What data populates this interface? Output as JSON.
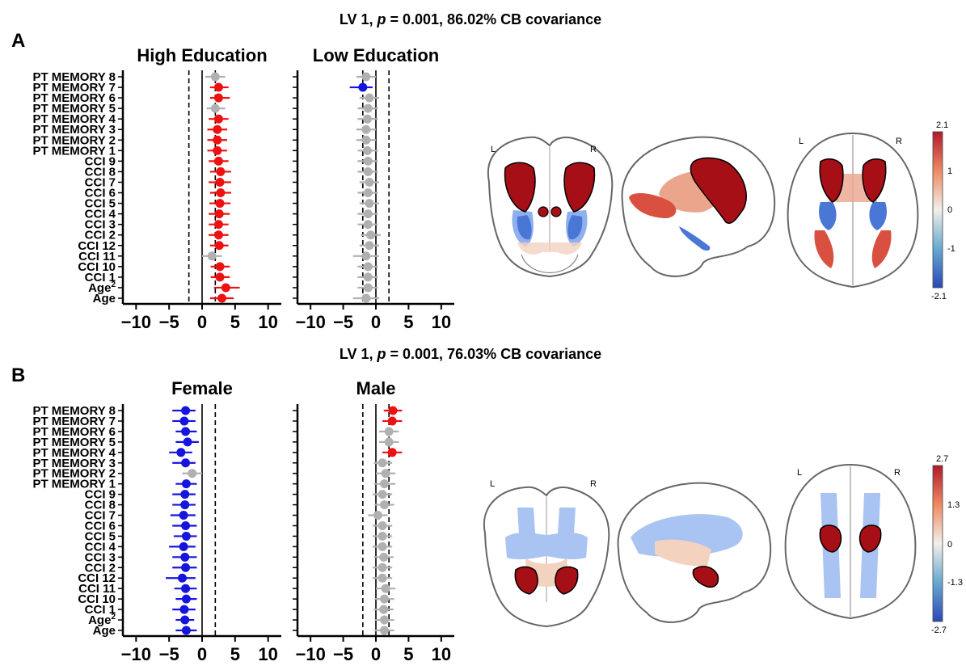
{
  "figure": {
    "panels": [
      {
        "letter": "A",
        "title_prefix": "LV 1, ",
        "title_p": "p",
        "title_rest": " = 0.001, 86.02% CB covariance",
        "lr_labels": [
          "L",
          "R",
          "L",
          "R"
        ],
        "brain_palette": {
          "dark_red": "#a50f15",
          "red": "#d95040",
          "salmon": "#eba58c",
          "light": "#f3d2c0",
          "blue": "#4a76d6",
          "light_blue": "#8fb0ec"
        },
        "colorbar": {
          "ticks": [
            "2.1",
            "1",
            "0",
            "-1",
            "-2.1"
          ],
          "min": -2.1,
          "max": 2.1
        }
      },
      {
        "letter": "B",
        "title_prefix": "LV 1, ",
        "title_p": "p",
        "title_rest": " = 0.001, 76.03% CB covariance",
        "lr_labels": [
          "L",
          "R",
          "L",
          "R"
        ],
        "brain_palette": {
          "dark_red": "#a50f15",
          "red": "#d95040",
          "salmon": "#eba58c",
          "light": "#f3d2c0",
          "blue": "#4a76d6",
          "light_blue": "#a9c3f2"
        },
        "colorbar": {
          "ticks": [
            "2.7",
            "1.3",
            "0",
            "-1.3",
            "-2.7"
          ],
          "min": -2.7,
          "max": 2.7
        }
      }
    ]
  },
  "chart_data": [
    {
      "type": "scatter",
      "title": "High Education",
      "categories": [
        "PT MEMORY 8",
        "PT MEMORY 7",
        "PT MEMORY 6",
        "PT MEMORY 5",
        "PT MEMORY 4",
        "PT MEMORY 3",
        "PT MEMORY 2",
        "PT MEMORY 1",
        "CCI 9",
        "CCI 8",
        "CCI 7",
        "CCI 6",
        "CCI 5",
        "CCI 4",
        "CCI 3",
        "CCI 2",
        "CCI 12",
        "CCI 11",
        "CCI 10",
        "CCI 1",
        "Age²",
        "Age"
      ],
      "xlim": [
        -12,
        12
      ],
      "xticks": [
        -10,
        -5,
        0,
        5,
        10
      ],
      "xtick_labels": [
        "−10",
        "−5",
        "0",
        "5",
        "10"
      ],
      "threshold_lines": [
        -2,
        2
      ],
      "values": [
        2.0,
        2.5,
        2.5,
        2.0,
        2.5,
        2.3,
        2.3,
        2.3,
        2.5,
        2.8,
        2.7,
        2.8,
        2.7,
        2.6,
        2.5,
        2.5,
        2.6,
        1.5,
        2.7,
        2.7,
        3.6,
        3.0
      ],
      "ci_low": [
        0.5,
        1.2,
        1.2,
        0.7,
        1.0,
        0.8,
        0.8,
        0.8,
        1.0,
        1.2,
        1.0,
        1.2,
        1.1,
        1.0,
        1.0,
        1.0,
        1.2,
        0.0,
        1.3,
        1.3,
        1.8,
        1.2
      ],
      "ci_high": [
        3.5,
        4.0,
        4.2,
        3.5,
        4.0,
        3.8,
        3.8,
        3.8,
        4.0,
        4.4,
        4.4,
        4.4,
        4.3,
        4.2,
        4.0,
        4.0,
        4.0,
        3.0,
        4.2,
        4.2,
        5.7,
        4.8
      ],
      "point_colors": [
        "#b0b0b0",
        "#ee1111",
        "#ee1111",
        "#b0b0b0",
        "#ee1111",
        "#ee1111",
        "#ee1111",
        "#ee1111",
        "#ee1111",
        "#ee1111",
        "#ee1111",
        "#ee1111",
        "#ee1111",
        "#ee1111",
        "#ee1111",
        "#ee1111",
        "#ee1111",
        "#b0b0b0",
        "#ee1111",
        "#ee1111",
        "#ee1111",
        "#ee1111"
      ]
    },
    {
      "type": "scatter",
      "title": "Low Education",
      "categories": [
        "PT MEMORY 8",
        "PT MEMORY 7",
        "PT MEMORY 6",
        "PT MEMORY 5",
        "PT MEMORY 4",
        "PT MEMORY 3",
        "PT MEMORY 2",
        "PT MEMORY 1",
        "CCI 9",
        "CCI 8",
        "CCI 7",
        "CCI 6",
        "CCI 5",
        "CCI 4",
        "CCI 3",
        "CCI 2",
        "CCI 12",
        "CCI 11",
        "CCI 10",
        "CCI 1",
        "Age²",
        "Age"
      ],
      "xlim": [
        -12,
        12
      ],
      "xticks": [
        -10,
        -5,
        0,
        5,
        10
      ],
      "xtick_labels": [
        "−10",
        "−5",
        "0",
        "5",
        "10"
      ],
      "threshold_lines": [
        -2,
        2
      ],
      "values": [
        -1.5,
        -2.0,
        -1.0,
        -1.2,
        -1.3,
        -1.5,
        -1.5,
        -1.3,
        -1.2,
        -1.2,
        -1.0,
        -1.2,
        -1.0,
        -1.2,
        -1.2,
        -0.8,
        -1.0,
        -1.5,
        -1.2,
        -1.2,
        -1.2,
        -1.5
      ],
      "ci_low": [
        -3.0,
        -4.0,
        -2.5,
        -2.8,
        -2.8,
        -3.0,
        -3.0,
        -2.8,
        -2.8,
        -2.8,
        -2.5,
        -2.8,
        -2.5,
        -2.8,
        -2.8,
        -2.3,
        -2.5,
        -3.5,
        -2.8,
        -2.8,
        -2.8,
        -3.5
      ],
      "ci_high": [
        0.0,
        -0.5,
        0.5,
        0.3,
        0.3,
        0.0,
        0.0,
        0.3,
        0.3,
        0.3,
        0.5,
        0.3,
        0.5,
        0.3,
        0.3,
        0.7,
        0.5,
        0.5,
        0.3,
        0.3,
        0.3,
        0.5
      ],
      "point_colors": [
        "#b0b0b0",
        "#1515dd",
        "#b0b0b0",
        "#b0b0b0",
        "#b0b0b0",
        "#b0b0b0",
        "#b0b0b0",
        "#b0b0b0",
        "#b0b0b0",
        "#b0b0b0",
        "#b0b0b0",
        "#b0b0b0",
        "#b0b0b0",
        "#b0b0b0",
        "#b0b0b0",
        "#b0b0b0",
        "#b0b0b0",
        "#b0b0b0",
        "#b0b0b0",
        "#b0b0b0",
        "#b0b0b0",
        "#b0b0b0"
      ]
    },
    {
      "type": "scatter",
      "title": "Female",
      "categories": [
        "PT MEMORY 8",
        "PT MEMORY 7",
        "PT MEMORY 6",
        "PT MEMORY 5",
        "PT MEMORY 4",
        "PT MEMORY 3",
        "PT MEMORY 2",
        "PT MEMORY 1",
        "CCI 9",
        "CCI 8",
        "CCI 7",
        "CCI 6",
        "CCI 5",
        "CCI 4",
        "CCI 3",
        "CCI 2",
        "CCI 12",
        "CCI 11",
        "CCI 10",
        "CCI 1",
        "Age²",
        "Age"
      ],
      "xlim": [
        -12,
        12
      ],
      "xticks": [
        -10,
        -5,
        0,
        5,
        10
      ],
      "xtick_labels": [
        "−10",
        "−5",
        "0",
        "5",
        "10"
      ],
      "threshold_lines": [
        2
      ],
      "values": [
        -2.5,
        -2.7,
        -2.5,
        -2.2,
        -3.2,
        -2.5,
        -1.5,
        -2.4,
        -2.6,
        -2.6,
        -2.8,
        -2.5,
        -2.4,
        -2.8,
        -2.6,
        -2.5,
        -3.0,
        -2.5,
        -2.4,
        -2.7,
        -2.6,
        -2.4
      ],
      "ci_low": [
        -4.5,
        -4.5,
        -4.0,
        -4.0,
        -5.0,
        -4.5,
        -3.0,
        -4.0,
        -4.5,
        -4.5,
        -4.8,
        -4.5,
        -4.3,
        -5.0,
        -4.5,
        -4.5,
        -5.5,
        -4.2,
        -4.0,
        -4.5,
        -4.0,
        -4.0
      ],
      "ci_high": [
        -1.0,
        -1.0,
        -0.8,
        -0.5,
        -1.5,
        -1.0,
        0.0,
        -0.8,
        -1.0,
        -1.0,
        -1.0,
        -0.8,
        -0.8,
        -1.0,
        -0.8,
        -0.8,
        -1.0,
        -0.8,
        -0.8,
        -1.0,
        -1.2,
        -0.8
      ],
      "point_colors": [
        "#1515dd",
        "#1515dd",
        "#1515dd",
        "#1515dd",
        "#1515dd",
        "#1515dd",
        "#b0b0b0",
        "#1515dd",
        "#1515dd",
        "#1515dd",
        "#1515dd",
        "#1515dd",
        "#1515dd",
        "#1515dd",
        "#1515dd",
        "#1515dd",
        "#1515dd",
        "#1515dd",
        "#1515dd",
        "#1515dd",
        "#1515dd",
        "#1515dd"
      ]
    },
    {
      "type": "scatter",
      "title": "Male",
      "categories": [
        "PT MEMORY 8",
        "PT MEMORY 7",
        "PT MEMORY 6",
        "PT MEMORY 5",
        "PT MEMORY 4",
        "PT MEMORY 3",
        "PT MEMORY 2",
        "PT MEMORY 1",
        "CCI 9",
        "CCI 8",
        "CCI 7",
        "CCI 6",
        "CCI 5",
        "CCI 4",
        "CCI 3",
        "CCI 2",
        "CCI 12",
        "CCI 11",
        "CCI 10",
        "CCI 1",
        "Age²",
        "Age"
      ],
      "xlim": [
        -12,
        12
      ],
      "xticks": [
        -10,
        -5,
        0,
        5,
        10
      ],
      "xtick_labels": [
        "−10",
        "−5",
        "0",
        "5",
        "10"
      ],
      "threshold_lines": [
        -2,
        2
      ],
      "values": [
        2.6,
        2.5,
        2.0,
        2.0,
        2.5,
        1.0,
        1.5,
        1.3,
        1.0,
        1.3,
        0.3,
        1.0,
        1.0,
        1.0,
        1.2,
        1.0,
        1.0,
        1.5,
        1.3,
        1.2,
        1.3,
        1.3
      ],
      "ci_low": [
        1.2,
        1.0,
        0.5,
        0.5,
        1.0,
        -0.3,
        0.0,
        -0.3,
        -0.5,
        -0.2,
        -1.2,
        -0.5,
        -0.5,
        -0.5,
        -0.3,
        -0.5,
        -0.5,
        0.0,
        -0.2,
        -0.3,
        -0.2,
        -0.2
      ],
      "ci_high": [
        4.0,
        4.0,
        3.5,
        3.5,
        4.0,
        2.5,
        3.0,
        3.0,
        2.5,
        2.8,
        1.8,
        2.5,
        2.5,
        2.5,
        2.7,
        2.5,
        2.5,
        3.0,
        2.8,
        2.7,
        2.8,
        2.8
      ],
      "point_colors": [
        "#ee1111",
        "#ee1111",
        "#b0b0b0",
        "#b0b0b0",
        "#ee1111",
        "#b0b0b0",
        "#b0b0b0",
        "#b0b0b0",
        "#b0b0b0",
        "#b0b0b0",
        "#b0b0b0",
        "#b0b0b0",
        "#b0b0b0",
        "#b0b0b0",
        "#b0b0b0",
        "#b0b0b0",
        "#b0b0b0",
        "#b0b0b0",
        "#b0b0b0",
        "#b0b0b0",
        "#b0b0b0",
        "#b0b0b0"
      ]
    }
  ]
}
